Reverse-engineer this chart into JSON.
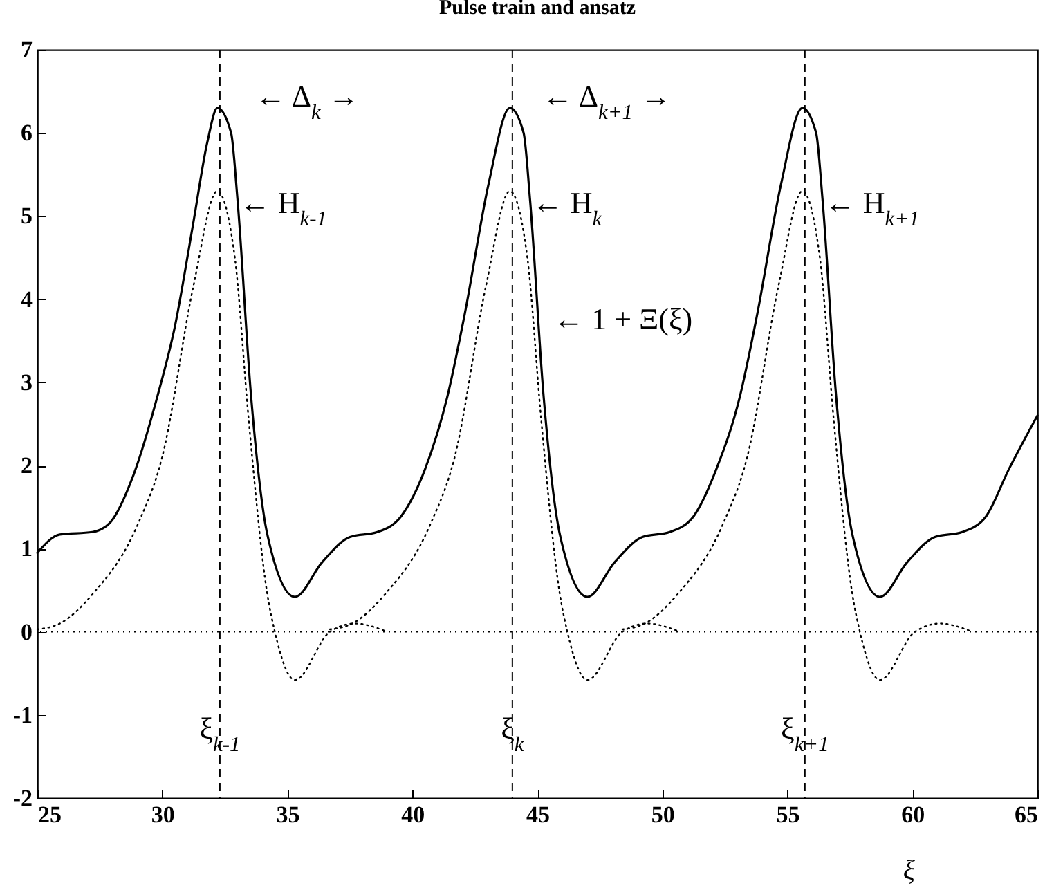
{
  "chart_data": {
    "type": "line",
    "title": "Pulse train and ansatz",
    "xlabel": "ξ",
    "xlim": [
      25,
      65
    ],
    "xticks": [
      25,
      30,
      35,
      40,
      45,
      50,
      55,
      60,
      65
    ],
    "ylim": [
      -2,
      7
    ],
    "yticks": [
      -2,
      -1,
      0,
      1,
      2,
      3,
      4,
      5,
      6,
      7
    ],
    "series": [
      {
        "color": "#000000",
        "line_style": "solid",
        "x": [
          25,
          25.9,
          27.2,
          27.9,
          28.85,
          29.8,
          30.5,
          31.25,
          31.8,
          32.2,
          32.75,
          33.0,
          33.55,
          34.2,
          35.3,
          36.4,
          37.5,
          38.6,
          39.55,
          40.5,
          41.4,
          42.1,
          43.05,
          43.9,
          44.45,
          44.7,
          45.25,
          45.9,
          47.0,
          48.1,
          49.2,
          50.3,
          51.25,
          52.15,
          53.1,
          53.8,
          54.75,
          55.6,
          56.15,
          56.4,
          56.95,
          57.6,
          58.7,
          59.8,
          60.9,
          62.0,
          62.95,
          63.85,
          65
        ],
        "values": [
          0.95,
          1.17,
          1.2,
          1.31,
          1.89,
          2.83,
          3.67,
          4.94,
          5.89,
          6.3,
          6.0,
          5.22,
          2.83,
          1.17,
          0.42,
          0.84,
          1.14,
          1.2,
          1.39,
          1.95,
          2.83,
          3.83,
          5.39,
          6.3,
          6.0,
          5.22,
          2.83,
          1.17,
          0.42,
          0.84,
          1.14,
          1.2,
          1.39,
          1.95,
          2.83,
          3.83,
          5.39,
          6.3,
          6.0,
          5.22,
          2.83,
          1.17,
          0.42,
          0.84,
          1.14,
          1.2,
          1.39,
          1.95,
          2.6
        ]
      },
      {
        "color": "#000000",
        "line_style": "dotted",
        "x": [
          25,
          25.9,
          27.2,
          29.0,
          30.0,
          31.25,
          32.2,
          32.9,
          33.45,
          34.2,
          34.5,
          35.3,
          36.7,
          37.7,
          39.0
        ],
        "values": [
          0.03,
          0.1,
          0.45,
          1.28,
          2.11,
          4.17,
          5.3,
          4.5,
          2.56,
          0.45,
          0,
          -0.58,
          0,
          0.1,
          0
        ]
      },
      {
        "color": "#000000",
        "line_style": "dotted",
        "x": [
          36.7,
          37.6,
          38.9,
          40.7,
          41.7,
          42.95,
          43.9,
          44.6,
          45.15,
          45.9,
          46.2,
          47.0,
          48.4,
          49.4,
          50.7
        ],
        "values": [
          0.03,
          0.1,
          0.45,
          1.28,
          2.11,
          4.17,
          5.3,
          4.5,
          2.56,
          0.45,
          0,
          -0.58,
          0,
          0.1,
          0
        ]
      },
      {
        "color": "#000000",
        "line_style": "dotted",
        "x": [
          48.4,
          49.3,
          50.6,
          52.4,
          53.4,
          54.65,
          55.6,
          56.3,
          56.85,
          57.6,
          57.9,
          58.7,
          60.1,
          61.1,
          62.4
        ],
        "values": [
          0.03,
          0.1,
          0.45,
          1.28,
          2.11,
          4.17,
          5.3,
          4.5,
          2.56,
          0.45,
          0,
          -0.58,
          0,
          0.1,
          0
        ]
      }
    ],
    "ref_lines": [
      {
        "axis": "x",
        "value": 32.3,
        "label": "ξ$_{k-1}$",
        "line_style": "dashed",
        "color": "#000000"
      },
      {
        "axis": "x",
        "value": 44.0,
        "label": "ξ$_{k}$",
        "line_style": "dashed",
        "color": "#000000"
      },
      {
        "axis": "x",
        "value": 55.7,
        "label": "ξ$_{k+1}$",
        "line_style": "dashed",
        "color": "#000000"
      },
      {
        "axis": "y",
        "value": 0,
        "line_style": "dotted",
        "color": "#000000"
      }
    ],
    "annotations": [
      "←  Δ$_{k}$  →",
      "←  Δ$_{k+1}$  →",
      {
        "text": "← H$_{k-1}$",
        "x": 33.1,
        "y": 5.15
      },
      {
        "text": "← H$_{k}$",
        "x": 44.8,
        "y": 5.15
      },
      {
        "text": "← H$_{k+1}$",
        "x": 56.5,
        "y": 5.15
      },
      "← 1 + Ξ(ξ)"
    ]
  }
}
